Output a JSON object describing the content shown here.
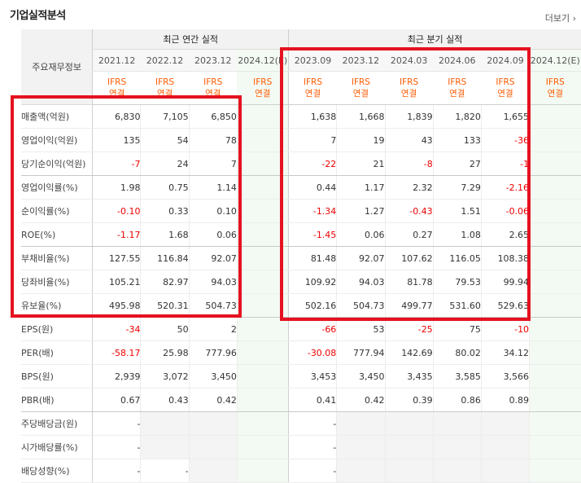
{
  "title": "기업실적분석",
  "more_link": "더보기",
  "header": {
    "row_header": "주요재무정보",
    "annual_group": "최근 연간 실적",
    "quarter_group": "최근 분기 실적",
    "annual_periods": [
      "2021.12",
      "2022.12",
      "2023.12",
      "2024.12(E)"
    ],
    "quarter_periods": [
      "2023.09",
      "2023.12",
      "2024.03",
      "2024.06",
      "2024.09",
      "2024.12(E)"
    ],
    "ifrs_top": "IFRS",
    "ifrs_bottom": "연결"
  },
  "rows": [
    {
      "label": "매출액(억원)",
      "annual": [
        "6,830",
        "7,105",
        "6,850",
        ""
      ],
      "quarter": [
        "1,638",
        "1,668",
        "1,839",
        "1,820",
        "1,655",
        ""
      ]
    },
    {
      "label": "영업이익(억원)",
      "annual": [
        "135",
        "54",
        "78",
        ""
      ],
      "quarter": [
        "7",
        "19",
        "43",
        "133",
        "-36",
        ""
      ]
    },
    {
      "label": "당기순이익(억원)",
      "annual": [
        "-7",
        "24",
        "7",
        ""
      ],
      "quarter": [
        "-22",
        "21",
        "-8",
        "27",
        "-1",
        ""
      ]
    },
    {
      "label": "영업이익률(%)",
      "annual": [
        "1.98",
        "0.75",
        "1.14",
        ""
      ],
      "quarter": [
        "0.44",
        "1.17",
        "2.32",
        "7.29",
        "-2.16",
        ""
      ]
    },
    {
      "label": "순이익률(%)",
      "annual": [
        "-0.10",
        "0.33",
        "0.10",
        ""
      ],
      "quarter": [
        "-1.34",
        "1.27",
        "-0.43",
        "1.51",
        "-0.06",
        ""
      ]
    },
    {
      "label": "ROE(%)",
      "annual": [
        "-1.17",
        "1.68",
        "0.06",
        ""
      ],
      "quarter": [
        "-1.45",
        "0.06",
        "0.27",
        "1.08",
        "2.65",
        ""
      ]
    },
    {
      "label": "부채비율(%)",
      "annual": [
        "127.55",
        "116.84",
        "92.07",
        ""
      ],
      "quarter": [
        "81.48",
        "92.07",
        "107.62",
        "116.05",
        "108.38",
        ""
      ]
    },
    {
      "label": "당좌비율(%)",
      "annual": [
        "105.21",
        "82.97",
        "94.03",
        ""
      ],
      "quarter": [
        "109.92",
        "94.03",
        "81.78",
        "79.53",
        "99.94",
        ""
      ]
    },
    {
      "label": "유보율(%)",
      "annual": [
        "495.98",
        "520.31",
        "504.73",
        ""
      ],
      "quarter": [
        "502.16",
        "504.73",
        "499.77",
        "531.60",
        "529.63",
        ""
      ]
    },
    {
      "label": "EPS(원)",
      "annual": [
        "-34",
        "50",
        "2",
        ""
      ],
      "quarter": [
        "-66",
        "53",
        "-25",
        "75",
        "-10",
        ""
      ]
    },
    {
      "label": "PER(배)",
      "annual": [
        "-58.17",
        "25.98",
        "777.96",
        ""
      ],
      "quarter": [
        "-30.08",
        "777.94",
        "142.69",
        "80.02",
        "34.12",
        ""
      ]
    },
    {
      "label": "BPS(원)",
      "annual": [
        "2,939",
        "3,072",
        "3,450",
        ""
      ],
      "quarter": [
        "3,453",
        "3,450",
        "3,435",
        "3,585",
        "3,566",
        ""
      ]
    },
    {
      "label": "PBR(배)",
      "annual": [
        "0.67",
        "0.43",
        "0.42",
        ""
      ],
      "quarter": [
        "0.41",
        "0.42",
        "0.39",
        "0.86",
        "0.89",
        ""
      ]
    },
    {
      "label": "주당배당금(원)",
      "annual": [
        "-",
        null,
        null,
        ""
      ],
      "quarter": [
        "-",
        null,
        null,
        null,
        null,
        ""
      ]
    },
    {
      "label": "시가배당률(%)",
      "annual": [
        "-",
        null,
        null,
        ""
      ],
      "quarter": [
        "-",
        null,
        null,
        null,
        null,
        ""
      ]
    },
    {
      "label": "배당성향(%)",
      "annual": [
        "-",
        "-",
        null,
        ""
      ],
      "quarter": [
        "-",
        null,
        null,
        null,
        null,
        ""
      ]
    }
  ]
}
